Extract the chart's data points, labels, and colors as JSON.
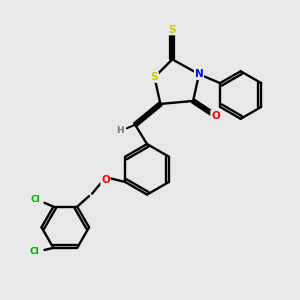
{
  "background_color": "#e8e8e8",
  "bond_color": "#000000",
  "atom_colors": {
    "S": "#cccc00",
    "N": "#0000ff",
    "O": "#ff0000",
    "Cl": "#00aa00",
    "H": "#777777",
    "C": "#000000"
  },
  "figsize": [
    3.0,
    3.0
  ],
  "dpi": 100
}
